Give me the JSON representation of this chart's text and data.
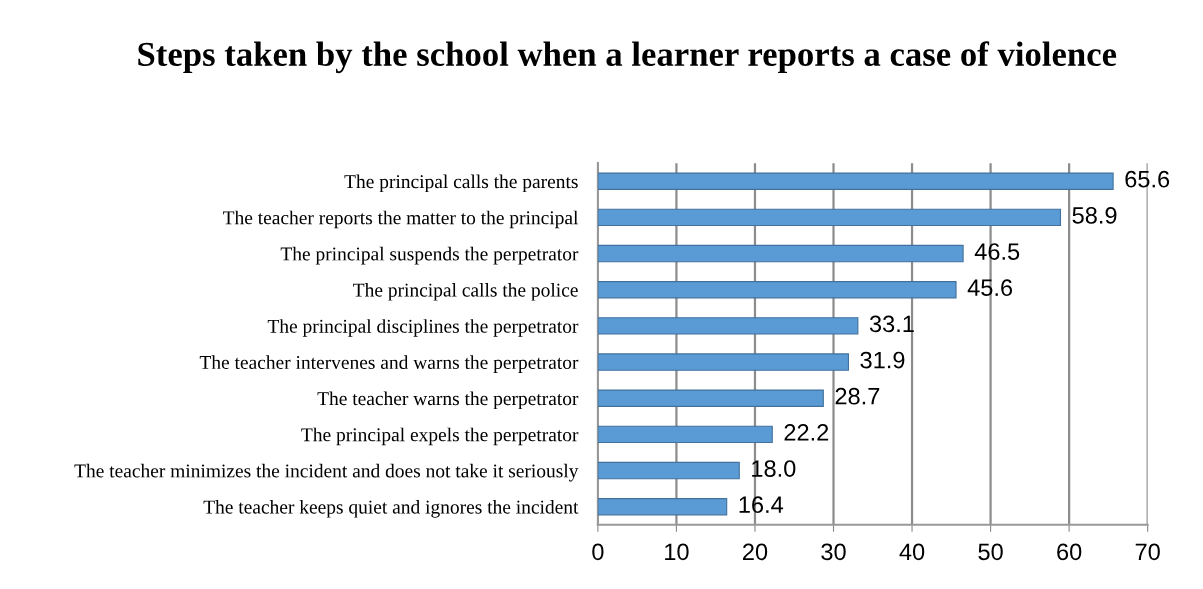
{
  "chart_data": {
    "type": "bar",
    "orientation": "horizontal",
    "title": "Steps taken by the school when a learner reports a case of violence",
    "categories": [
      "The principal calls the parents",
      "The teacher reports the matter to the principal",
      "The principal suspends the perpetrator",
      "The principal calls the police",
      "The principal disciplines the perpetrator",
      "The teacher intervenes and warns the perpetrator",
      "The teacher warns the perpetrator",
      "The principal expels the perpetrator",
      "The teacher minimizes the incident and does not take it seriously",
      "The teacher keeps quiet and ignores the incident"
    ],
    "values": [
      65.6,
      58.9,
      46.5,
      45.6,
      33.1,
      31.9,
      28.7,
      22.2,
      18.0,
      16.4
    ],
    "color": "#5b9bd5",
    "value_labels": [
      "65.6",
      "58.9",
      "46.5",
      "45.6",
      "33.1",
      "31.9",
      "28.7",
      "22.2",
      "18.0",
      "16.4"
    ],
    "xlim": [
      0,
      70
    ],
    "xticks": [
      0,
      10,
      20,
      30,
      40,
      50,
      60,
      70
    ],
    "grid": "x",
    "legend": false
  }
}
